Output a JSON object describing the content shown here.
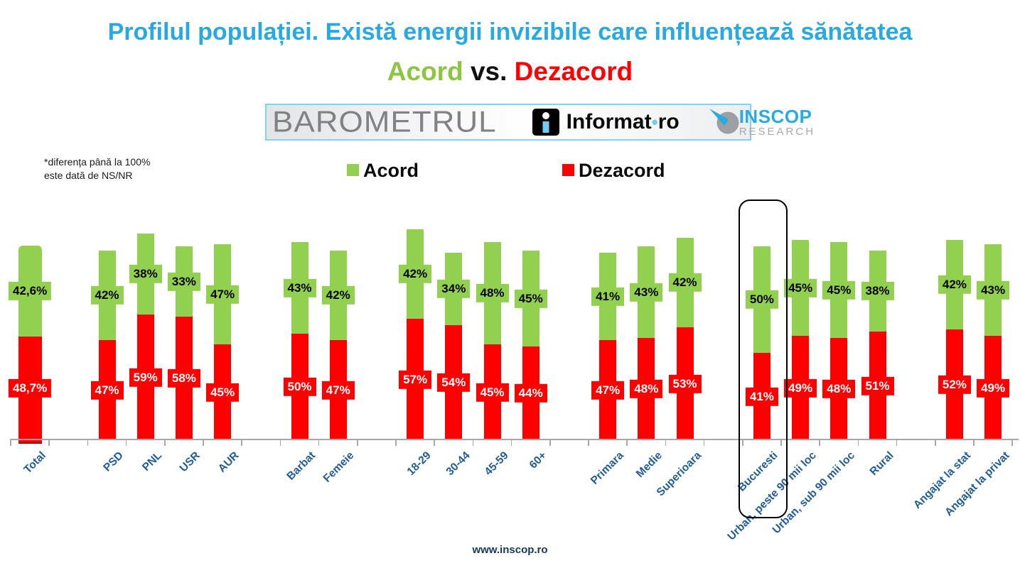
{
  "page": {
    "title": "Profilul populației. Există energii invizibile care influențează sănătatea",
    "subtitle": {
      "acord": "Acord",
      "vs": " vs. ",
      "dezacord": "Dezacord"
    },
    "note_line1": "*diferența până la 100%",
    "note_line2": "este dată de NS/NR",
    "footer": "www.inscop.ro"
  },
  "banner": {
    "barometrul": "BAROMETRUL",
    "informat": {
      "icon": "informat-i-logo",
      "part1": "Informat",
      "dot": "•",
      "part2": "ro"
    },
    "inscop": {
      "icon": "inscop-dial-logo",
      "line1": "INSCOP",
      "line2": "RESEARCH"
    }
  },
  "legend": [
    {
      "label": "Acord",
      "color": "#92D050"
    },
    {
      "label": "Dezacord",
      "color": "#FF0000"
    }
  ],
  "chart_data": {
    "type": "bar",
    "stacked": true,
    "title": "Acord vs. Dezacord",
    "unit": "%",
    "categories": [
      "Total",
      "PSD",
      "PNL",
      "USR",
      "AUR",
      "Barbat",
      "Femeie",
      "18-29",
      "30-44",
      "45-59",
      "60+",
      "Primara",
      "Medie",
      "Superioara",
      "Bucuresti",
      "Urban, peste 90 mii loc",
      "Urban, sub 90 mii loc",
      "Rural",
      "Angajat la stat",
      "Angajat la privat"
    ],
    "group_sizes": [
      1,
      4,
      2,
      4,
      3,
      4,
      2
    ],
    "series": [
      {
        "name": "Acord",
        "color": "#92D050",
        "position": "top",
        "values": [
          42.6,
          42,
          38,
          33,
          47,
          43,
          42,
          42,
          34,
          48,
          45,
          41,
          43,
          42,
          50,
          45,
          45,
          38,
          42,
          43
        ],
        "labels": [
          "42,6%",
          "42%",
          "38%",
          "33%",
          "47%",
          "43%",
          "42%",
          "42%",
          "34%",
          "48%",
          "45%",
          "41%",
          "43%",
          "42%",
          "50%",
          "45%",
          "45%",
          "38%",
          "42%",
          "43%"
        ]
      },
      {
        "name": "Dezacord",
        "color": "#FF0000",
        "position": "bottom",
        "values": [
          48.7,
          47,
          59,
          58,
          45,
          50,
          47,
          57,
          54,
          45,
          44,
          47,
          48,
          53,
          41,
          49,
          48,
          51,
          52,
          49
        ],
        "labels": [
          "48,7%",
          "47%",
          "59%",
          "58%",
          "45%",
          "50%",
          "47%",
          "57%",
          "54%",
          "45%",
          "44%",
          "47%",
          "48%",
          "53%",
          "41%",
          "49%",
          "48%",
          "51%",
          "52%",
          "49%"
        ]
      }
    ],
    "highlighted_category": "Bucuresti",
    "note": "*diferența până la 100% este dată de NS/NR",
    "legend_position": "top",
    "x_labels_rotation_deg": -45
  }
}
